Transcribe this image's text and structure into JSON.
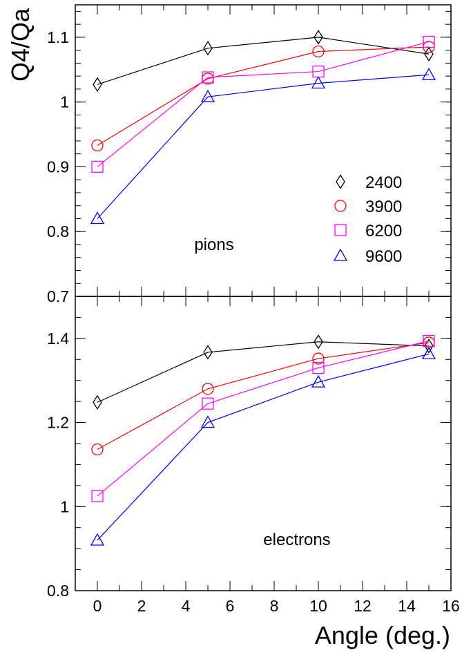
{
  "figure": {
    "ylabel": "Q4/Qa",
    "xlabel": "Angle (deg.)"
  },
  "colors": {
    "2400": "#000000",
    "3900": "#ff0000",
    "6200": "#ff00ff",
    "9600": "#0000ff"
  },
  "chart_data": [
    {
      "type": "line",
      "annotation": "pions",
      "x": [
        0,
        5,
        10,
        15
      ],
      "xlim": [
        -1,
        16
      ],
      "ylim": [
        0.7,
        1.15
      ],
      "xticks": [
        0,
        2,
        4,
        6,
        8,
        10,
        12,
        14,
        16
      ],
      "yticks": [
        0.7,
        0.8,
        0.9,
        1,
        1.1
      ],
      "ytick_labels": [
        "0.7",
        "0.8",
        "0.9",
        "1",
        "1.1"
      ],
      "legend_placement": "right-middle",
      "series": [
        {
          "name": "2400",
          "marker": "diamond",
          "values": [
            1.027,
            1.083,
            1.1,
            1.074
          ]
        },
        {
          "name": "3900",
          "marker": "circle",
          "values": [
            0.933,
            1.036,
            1.078,
            1.085
          ]
        },
        {
          "name": "6200",
          "marker": "square",
          "values": [
            0.9,
            1.038,
            1.047,
            1.093
          ]
        },
        {
          "name": "9600",
          "marker": "triangle",
          "values": [
            0.82,
            1.008,
            1.029,
            1.042
          ]
        }
      ]
    },
    {
      "type": "line",
      "annotation": "electrons",
      "x": [
        0,
        5,
        10,
        15
      ],
      "xlim": [
        -1,
        16
      ],
      "ylim": [
        0.8,
        1.5
      ],
      "xticks": [
        0,
        2,
        4,
        6,
        8,
        10,
        12,
        14,
        16
      ],
      "xtick_labels": [
        "0",
        "2",
        "4",
        "6",
        "8",
        "10",
        "12",
        "14",
        "16"
      ],
      "yticks": [
        0.8,
        1.0,
        1.2,
        1.4
      ],
      "ytick_labels": [
        "0.8",
        "1",
        "1.2",
        "1.4"
      ],
      "series": [
        {
          "name": "2400",
          "marker": "diamond",
          "values": [
            1.248,
            1.367,
            1.392,
            1.382
          ]
        },
        {
          "name": "3900",
          "marker": "circle",
          "values": [
            1.136,
            1.28,
            1.352,
            1.39
          ]
        },
        {
          "name": "6200",
          "marker": "square",
          "values": [
            1.025,
            1.245,
            1.33,
            1.394
          ]
        },
        {
          "name": "9600",
          "marker": "triangle",
          "values": [
            0.92,
            1.2,
            1.296,
            1.363
          ]
        }
      ]
    }
  ]
}
